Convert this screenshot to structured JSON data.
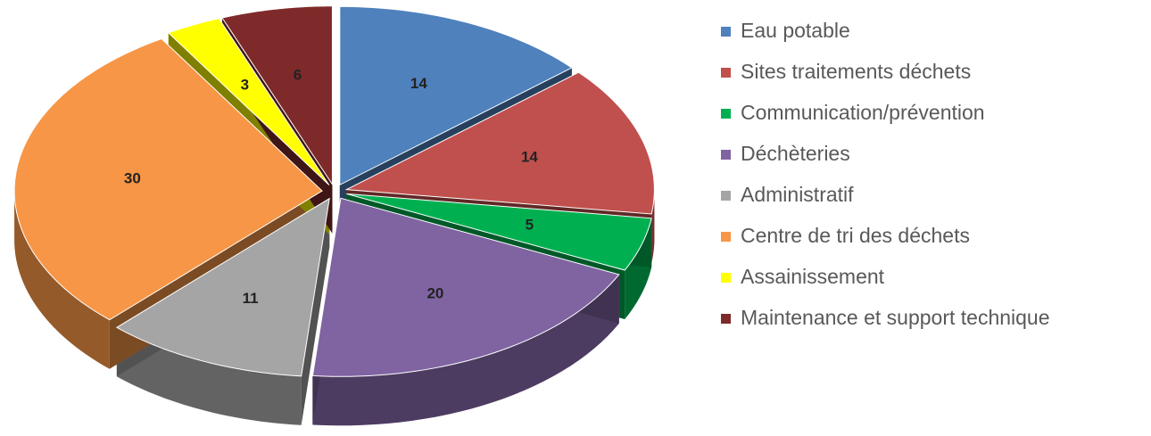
{
  "chart_data": {
    "type": "pie3d",
    "categories": [
      "Eau potable",
      "Sites traitements déchets",
      "Communication/prévention",
      "Déchèteries",
      "Administratif",
      "Centre de tri des déchets",
      "Assainissement",
      "Maintenance et support technique"
    ],
    "values": [
      14,
      14,
      5,
      20,
      11,
      30,
      3,
      6
    ],
    "colors": [
      "#4f81bd",
      "#c0504d",
      "#00b050",
      "#8064a2",
      "#a5a5a5",
      "#f79646",
      "#ffff00",
      "#7f2a2a"
    ],
    "legend": "right"
  }
}
